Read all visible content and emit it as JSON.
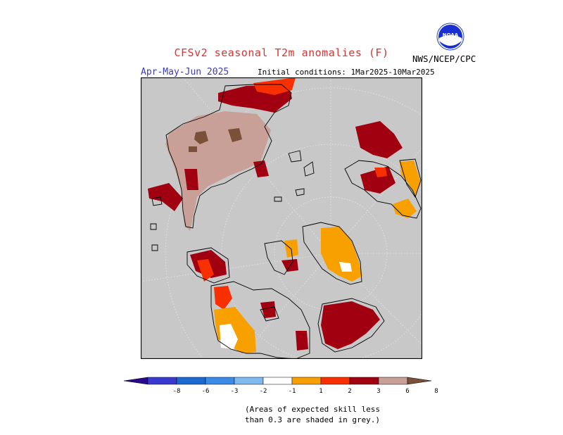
{
  "header": {
    "title": "CFSv2 seasonal T2m anomalies (F)",
    "season": "Apr-May-Jun 2025",
    "initial_conditions": "Initial conditions: 1Mar2025-10Mar2025",
    "agency": "NWS/NCEP/CPC",
    "logo_text": "NOAA"
  },
  "colorbar": {
    "tick_labels": [
      "-8",
      "-6",
      "-3",
      "-2",
      "-1",
      "1",
      "2",
      "3",
      "6",
      "8"
    ],
    "colors": [
      "#2a0a8a",
      "#3a3ad0",
      "#1a6ad0",
      "#3a8ae8",
      "#80b8f0",
      "#ffffff",
      "#f8a000",
      "#f83000",
      "#a00010",
      "#c8a098",
      "#7a5038"
    ]
  },
  "map": {
    "background_color": "#c8c8c8",
    "coast_color": "#000000",
    "grid_color": "#ffffff"
  },
  "note": {
    "line1": "(Areas of expected skill less",
    "line2": "than 0.3 are shaded in grey.)"
  }
}
